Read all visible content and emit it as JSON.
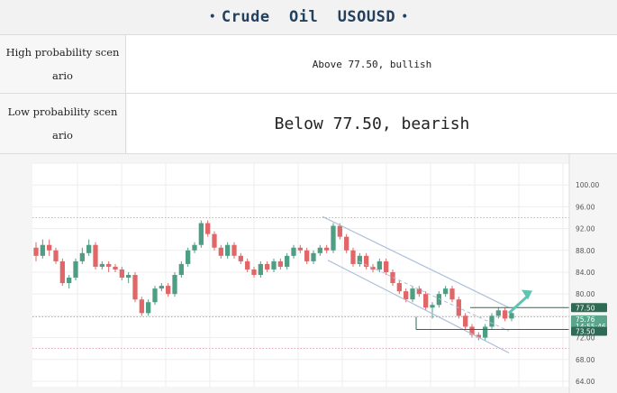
{
  "header": {
    "title": "Crude  Oil  USOUSD",
    "bullet": "•"
  },
  "scenarios": [
    {
      "label": "High probability scenario",
      "value": "Above 77.50, bullish"
    },
    {
      "label": "Low probability scenario",
      "value": "Below 77.50, bearish"
    }
  ],
  "chart_data": {
    "type": "candlestick",
    "y_ticks": [
      "100.00",
      "96.00",
      "92.00",
      "88.00",
      "84.00",
      "80.00",
      "72.00",
      "68.00",
      "64.00"
    ],
    "ylim": [
      63,
      104
    ],
    "price_labels": {
      "resistance": "77.50",
      "current": "75.76",
      "countdown": "14:55:46",
      "support": "73.50"
    },
    "levels": {
      "resistance": 77.5,
      "support": 73.5
    },
    "colors": {
      "up": "#4e9e84",
      "down": "#e16667",
      "channel": "#aebfd9",
      "arrow": "#5fc4b1",
      "box_dark": "#2f6a55",
      "current_label": "#5aa58b"
    },
    "candles": [
      [
        88.5,
        87,
        86,
        89.5
      ],
      [
        87,
        89,
        86.5,
        90
      ],
      [
        89,
        88,
        87,
        90
      ],
      [
        88,
        86,
        85.5,
        88.5
      ],
      [
        86,
        82,
        81.5,
        86.5
      ],
      [
        82,
        83,
        81,
        83.5
      ],
      [
        83,
        86,
        82.5,
        86.5
      ],
      [
        86,
        87.5,
        85.5,
        88.5
      ],
      [
        87.5,
        89,
        87,
        90
      ],
      [
        89,
        85,
        84.5,
        89.5
      ],
      [
        85,
        85.5,
        84.5,
        86
      ],
      [
        85.5,
        85,
        84,
        86
      ],
      [
        85,
        84.5,
        84,
        85.5
      ],
      [
        84.5,
        83,
        82.5,
        85
      ],
      [
        83,
        83.5,
        82,
        84
      ],
      [
        83.5,
        79,
        78.5,
        84
      ],
      [
        79,
        76.5,
        76,
        79.5
      ],
      [
        76.5,
        78.5,
        76,
        79
      ],
      [
        78.5,
        81,
        78,
        81.5
      ],
      [
        81,
        81.5,
        80.5,
        82
      ],
      [
        81.5,
        80,
        79.5,
        82
      ],
      [
        80,
        83.5,
        79.5,
        84
      ],
      [
        83.5,
        85.5,
        83,
        86
      ],
      [
        85.5,
        88,
        85,
        88.5
      ],
      [
        88,
        89,
        87.5,
        89.5
      ],
      [
        89,
        93,
        88.5,
        93.5
      ],
      [
        93,
        91,
        90.5,
        93.5
      ],
      [
        91,
        88.5,
        88,
        91.5
      ],
      [
        88.5,
        87,
        86.5,
        89
      ],
      [
        87,
        89,
        86.5,
        89.5
      ],
      [
        89,
        87,
        86.5,
        89.5
      ],
      [
        87,
        86,
        85.5,
        87.5
      ],
      [
        86,
        84.5,
        84,
        86.5
      ],
      [
        84.5,
        83.5,
        83,
        85
      ],
      [
        83.5,
        85.5,
        83,
        86
      ],
      [
        85.5,
        84.5,
        84,
        86
      ],
      [
        84.5,
        86,
        84,
        86.5
      ],
      [
        86,
        85,
        84.5,
        86.5
      ],
      [
        85,
        87,
        84.5,
        87.5
      ],
      [
        87,
        88.5,
        86.5,
        89
      ],
      [
        88.5,
        88,
        87.5,
        89
      ],
      [
        88,
        86,
        85.5,
        88.5
      ],
      [
        86,
        87.5,
        85.5,
        88
      ],
      [
        87.5,
        88.5,
        87,
        89
      ],
      [
        88.5,
        88,
        87.5,
        89
      ],
      [
        88,
        92.5,
        87.5,
        93
      ],
      [
        92.5,
        90.5,
        90,
        93
      ],
      [
        90.5,
        88,
        87.5,
        91
      ],
      [
        88,
        85.5,
        85,
        88.5
      ],
      [
        85.5,
        87,
        85,
        87.5
      ],
      [
        87,
        85,
        84.5,
        87.5
      ],
      [
        85,
        84.5,
        84,
        85.5
      ],
      [
        84.5,
        86,
        84,
        86.5
      ],
      [
        86,
        84,
        83.5,
        86.5
      ],
      [
        84,
        82,
        81.5,
        84.5
      ],
      [
        82,
        80.5,
        80,
        82.5
      ],
      [
        80.5,
        79,
        78.5,
        81
      ],
      [
        79,
        81,
        78.5,
        81.5
      ],
      [
        81,
        80,
        79.5,
        81.5
      ],
      [
        80,
        77.5,
        77,
        80.5
      ],
      [
        77.5,
        78,
        75.5,
        78.5
      ],
      [
        78,
        80,
        77.5,
        80.5
      ],
      [
        80,
        81,
        79.5,
        81.5
      ],
      [
        81,
        79,
        78.5,
        81.5
      ],
      [
        79,
        76,
        75.5,
        79.5
      ],
      [
        76,
        74,
        73.5,
        76.5
      ],
      [
        74,
        72.5,
        72,
        74.5
      ],
      [
        72.5,
        72,
        71.5,
        73
      ],
      [
        72,
        74,
        71.5,
        74.5
      ],
      [
        74,
        76,
        73.5,
        76.5
      ],
      [
        76,
        77,
        75.5,
        77.5
      ],
      [
        77,
        75.5,
        75,
        77.5
      ],
      [
        75.5,
        76.5,
        75,
        77
      ]
    ]
  }
}
